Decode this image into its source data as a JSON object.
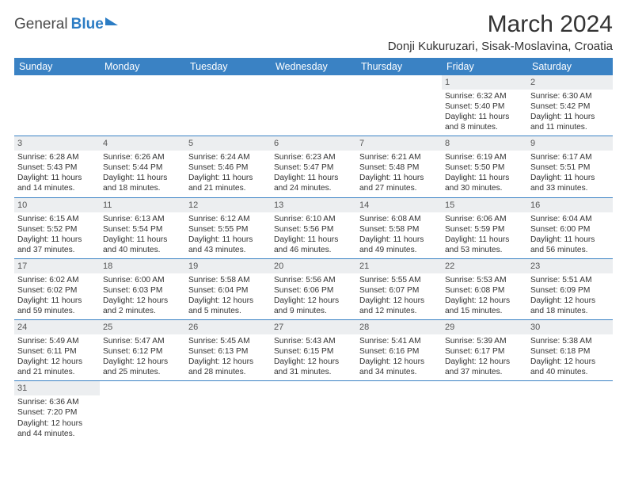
{
  "logo": {
    "text1": "General",
    "text2": "Blue"
  },
  "title": "March 2024",
  "location": "Donji Kukuruzari, Sisak-Moslavina, Croatia",
  "colors": {
    "header_bg": "#3a82c4",
    "header_fg": "#ffffff",
    "daynum_bg": "#eceef0",
    "border": "#3a82c4",
    "text": "#333333"
  },
  "daysOfWeek": [
    "Sunday",
    "Monday",
    "Tuesday",
    "Wednesday",
    "Thursday",
    "Friday",
    "Saturday"
  ],
  "firstWeekday": 5,
  "cells": [
    {
      "n": 1,
      "sr": "6:32 AM",
      "ss": "5:40 PM",
      "dh": 11,
      "dm": 8
    },
    {
      "n": 2,
      "sr": "6:30 AM",
      "ss": "5:42 PM",
      "dh": 11,
      "dm": 11
    },
    {
      "n": 3,
      "sr": "6:28 AM",
      "ss": "5:43 PM",
      "dh": 11,
      "dm": 14
    },
    {
      "n": 4,
      "sr": "6:26 AM",
      "ss": "5:44 PM",
      "dh": 11,
      "dm": 18
    },
    {
      "n": 5,
      "sr": "6:24 AM",
      "ss": "5:46 PM",
      "dh": 11,
      "dm": 21
    },
    {
      "n": 6,
      "sr": "6:23 AM",
      "ss": "5:47 PM",
      "dh": 11,
      "dm": 24
    },
    {
      "n": 7,
      "sr": "6:21 AM",
      "ss": "5:48 PM",
      "dh": 11,
      "dm": 27
    },
    {
      "n": 8,
      "sr": "6:19 AM",
      "ss": "5:50 PM",
      "dh": 11,
      "dm": 30
    },
    {
      "n": 9,
      "sr": "6:17 AM",
      "ss": "5:51 PM",
      "dh": 11,
      "dm": 33
    },
    {
      "n": 10,
      "sr": "6:15 AM",
      "ss": "5:52 PM",
      "dh": 11,
      "dm": 37
    },
    {
      "n": 11,
      "sr": "6:13 AM",
      "ss": "5:54 PM",
      "dh": 11,
      "dm": 40
    },
    {
      "n": 12,
      "sr": "6:12 AM",
      "ss": "5:55 PM",
      "dh": 11,
      "dm": 43
    },
    {
      "n": 13,
      "sr": "6:10 AM",
      "ss": "5:56 PM",
      "dh": 11,
      "dm": 46
    },
    {
      "n": 14,
      "sr": "6:08 AM",
      "ss": "5:58 PM",
      "dh": 11,
      "dm": 49
    },
    {
      "n": 15,
      "sr": "6:06 AM",
      "ss": "5:59 PM",
      "dh": 11,
      "dm": 53
    },
    {
      "n": 16,
      "sr": "6:04 AM",
      "ss": "6:00 PM",
      "dh": 11,
      "dm": 56
    },
    {
      "n": 17,
      "sr": "6:02 AM",
      "ss": "6:02 PM",
      "dh": 11,
      "dm": 59
    },
    {
      "n": 18,
      "sr": "6:00 AM",
      "ss": "6:03 PM",
      "dh": 12,
      "dm": 2
    },
    {
      "n": 19,
      "sr": "5:58 AM",
      "ss": "6:04 PM",
      "dh": 12,
      "dm": 5
    },
    {
      "n": 20,
      "sr": "5:56 AM",
      "ss": "6:06 PM",
      "dh": 12,
      "dm": 9
    },
    {
      "n": 21,
      "sr": "5:55 AM",
      "ss": "6:07 PM",
      "dh": 12,
      "dm": 12
    },
    {
      "n": 22,
      "sr": "5:53 AM",
      "ss": "6:08 PM",
      "dh": 12,
      "dm": 15
    },
    {
      "n": 23,
      "sr": "5:51 AM",
      "ss": "6:09 PM",
      "dh": 12,
      "dm": 18
    },
    {
      "n": 24,
      "sr": "5:49 AM",
      "ss": "6:11 PM",
      "dh": 12,
      "dm": 21
    },
    {
      "n": 25,
      "sr": "5:47 AM",
      "ss": "6:12 PM",
      "dh": 12,
      "dm": 25
    },
    {
      "n": 26,
      "sr": "5:45 AM",
      "ss": "6:13 PM",
      "dh": 12,
      "dm": 28
    },
    {
      "n": 27,
      "sr": "5:43 AM",
      "ss": "6:15 PM",
      "dh": 12,
      "dm": 31
    },
    {
      "n": 28,
      "sr": "5:41 AM",
      "ss": "6:16 PM",
      "dh": 12,
      "dm": 34
    },
    {
      "n": 29,
      "sr": "5:39 AM",
      "ss": "6:17 PM",
      "dh": 12,
      "dm": 37
    },
    {
      "n": 30,
      "sr": "5:38 AM",
      "ss": "6:18 PM",
      "dh": 12,
      "dm": 40
    },
    {
      "n": 31,
      "sr": "6:36 AM",
      "ss": "7:20 PM",
      "dh": 12,
      "dm": 44
    }
  ],
  "labels": {
    "sunrise": "Sunrise:",
    "sunset": "Sunset:",
    "daylight": "Daylight:",
    "hours": "hours",
    "and": "and",
    "minutes": "minutes."
  }
}
